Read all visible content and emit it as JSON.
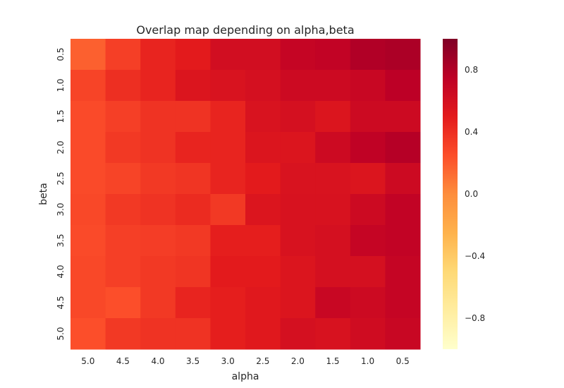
{
  "chart_data": {
    "type": "heatmap",
    "title": "Overlap map depending on alpha,beta",
    "xlabel": "alpha",
    "ylabel": "beta",
    "x_categories": [
      "5.0",
      "4.5",
      "4.0",
      "3.5",
      "3.0",
      "2.5",
      "2.0",
      "1.5",
      "1.0",
      "0.5"
    ],
    "y_categories": [
      "0.5",
      "1.0",
      "1.5",
      "2.0",
      "2.5",
      "3.0",
      "3.5",
      "4.0",
      "4.5",
      "5.0"
    ],
    "values": [
      [
        0.18,
        0.32,
        0.45,
        0.5,
        0.62,
        0.62,
        0.7,
        0.72,
        0.8,
        0.82
      ],
      [
        0.3,
        0.4,
        0.45,
        0.55,
        0.57,
        0.6,
        0.65,
        0.65,
        0.68,
        0.75
      ],
      [
        0.27,
        0.32,
        0.38,
        0.38,
        0.45,
        0.57,
        0.6,
        0.55,
        0.65,
        0.65
      ],
      [
        0.27,
        0.35,
        0.38,
        0.45,
        0.45,
        0.55,
        0.55,
        0.65,
        0.73,
        0.78
      ],
      [
        0.27,
        0.3,
        0.35,
        0.37,
        0.45,
        0.5,
        0.57,
        0.57,
        0.55,
        0.65
      ],
      [
        0.28,
        0.35,
        0.38,
        0.42,
        0.35,
        0.55,
        0.58,
        0.58,
        0.65,
        0.72
      ],
      [
        0.27,
        0.32,
        0.33,
        0.35,
        0.48,
        0.48,
        0.58,
        0.6,
        0.7,
        0.72
      ],
      [
        0.28,
        0.32,
        0.35,
        0.37,
        0.5,
        0.5,
        0.55,
        0.6,
        0.6,
        0.7
      ],
      [
        0.28,
        0.25,
        0.35,
        0.45,
        0.48,
        0.52,
        0.55,
        0.68,
        0.65,
        0.7
      ],
      [
        0.25,
        0.35,
        0.38,
        0.38,
        0.48,
        0.52,
        0.6,
        0.58,
        0.63,
        0.68
      ]
    ],
    "vmin": -1.0,
    "vmax": 1.0,
    "colormap": "YlOrRd",
    "colorbar_ticks": [
      "0.8",
      "0.4",
      "0.0",
      "−0.4",
      "−0.8"
    ],
    "colorbar_tick_values": [
      0.8,
      0.4,
      0.0,
      -0.4,
      -0.8
    ],
    "grid": false
  }
}
